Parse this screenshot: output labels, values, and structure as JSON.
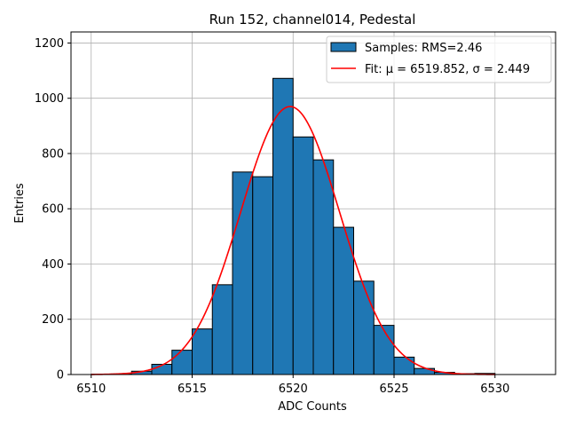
{
  "chart_data": {
    "type": "bar",
    "title": "Run 152, channel014, Pedestal",
    "xlabel": "ADC Counts",
    "ylabel": "Entries",
    "xlim": [
      6509,
      6533
    ],
    "ylim": [
      0,
      1240
    ],
    "xticks": [
      6510,
      6515,
      6520,
      6525,
      6530
    ],
    "yticks": [
      0,
      200,
      400,
      600,
      800,
      1000,
      1200
    ],
    "grid": true,
    "legend_position": "top-right",
    "bar_color": "#1f77b4",
    "fit_color": "#ff0000",
    "bin_width": 1,
    "bins": [
      {
        "left": 6510,
        "count": 1
      },
      {
        "left": 6511,
        "count": 2
      },
      {
        "left": 6512,
        "count": 12
      },
      {
        "left": 6513,
        "count": 37
      },
      {
        "left": 6514,
        "count": 88
      },
      {
        "left": 6515,
        "count": 165
      },
      {
        "left": 6516,
        "count": 325
      },
      {
        "left": 6517,
        "count": 733
      },
      {
        "left": 6518,
        "count": 716
      },
      {
        "left": 6519,
        "count": 1072
      },
      {
        "left": 6520,
        "count": 860
      },
      {
        "left": 6521,
        "count": 777
      },
      {
        "left": 6522,
        "count": 533
      },
      {
        "left": 6523,
        "count": 338
      },
      {
        "left": 6524,
        "count": 178
      },
      {
        "left": 6525,
        "count": 63
      },
      {
        "left": 6526,
        "count": 22
      },
      {
        "left": 6527,
        "count": 8
      },
      {
        "left": 6528,
        "count": 3
      },
      {
        "left": 6529,
        "count": 4
      }
    ],
    "fit": {
      "type": "gaussian",
      "amplitude": 970,
      "mu": 6519.852,
      "sigma": 2.449,
      "x_range": [
        6510,
        6530
      ]
    },
    "legend": [
      {
        "label": "Samples: RMS=2.46",
        "kind": "bar"
      },
      {
        "label": "Fit: μ = 6519.852, σ = 2.449",
        "kind": "line"
      }
    ]
  }
}
